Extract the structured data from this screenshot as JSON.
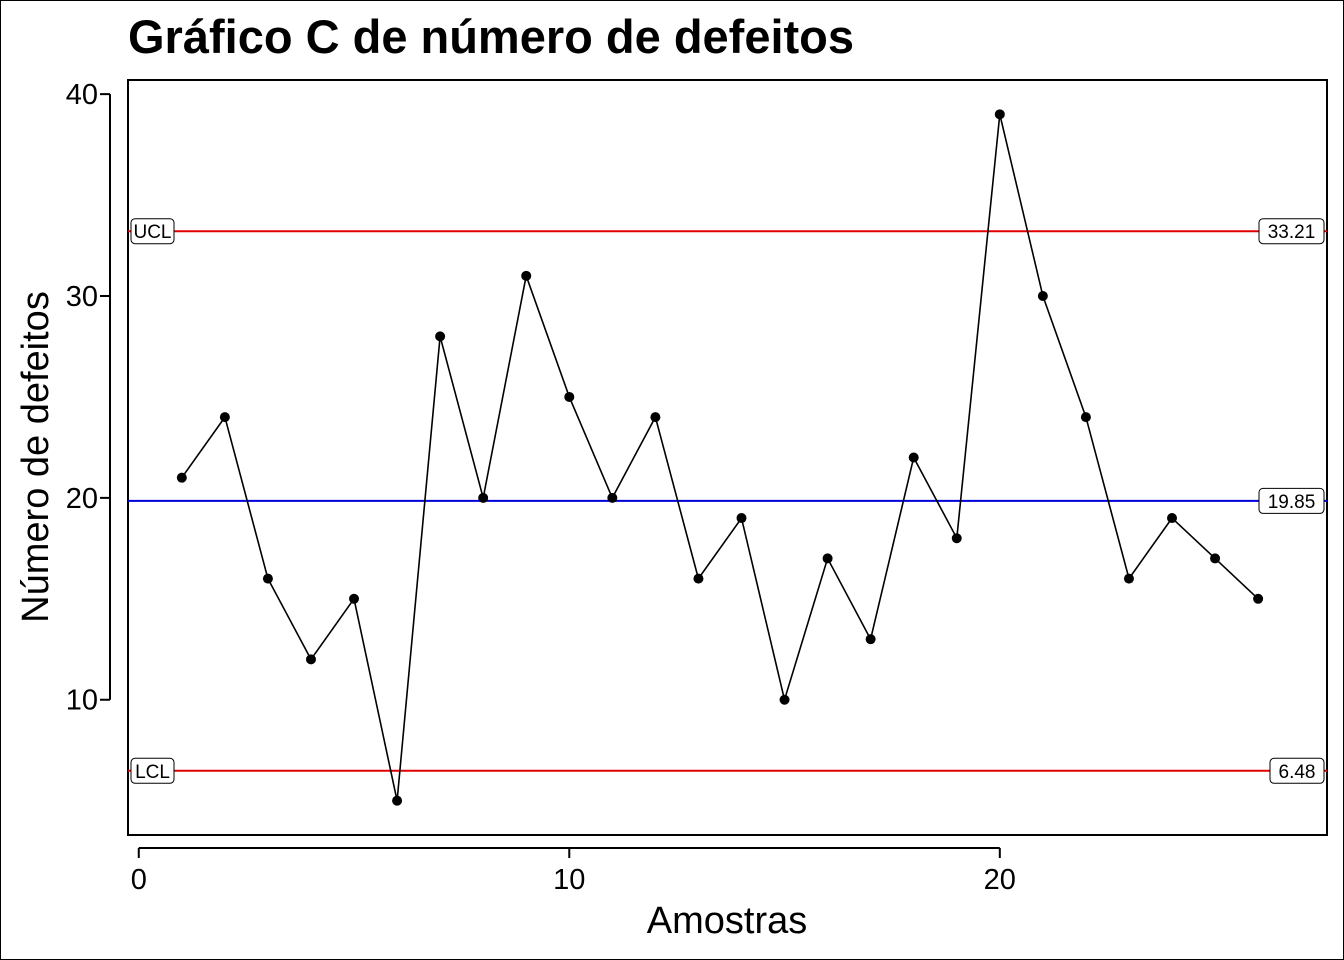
{
  "chart_data": {
    "type": "line",
    "title": "Gráfico C de número de defeitos",
    "xlabel": "Amostras",
    "ylabel": "Número de defeitos",
    "xlim": [
      -0.25,
      27.6
    ],
    "ylim": [
      3.3,
      40.7
    ],
    "x_ticks": [
      0,
      10,
      20
    ],
    "y_ticks": [
      10,
      20,
      30,
      40
    ],
    "grid": false,
    "legend": "none",
    "series": [
      {
        "x": [
          1,
          2,
          3,
          4,
          5,
          6,
          7,
          8,
          9,
          10,
          11,
          12,
          13,
          14,
          15,
          16,
          17,
          18,
          19,
          20,
          21,
          22,
          23,
          24,
          25,
          26
        ],
        "values": [
          21,
          24,
          16,
          12,
          15,
          5,
          28,
          20,
          31,
          25,
          20,
          24,
          16,
          19,
          10,
          17,
          13,
          22,
          18,
          39,
          30,
          24,
          16,
          19,
          17,
          15
        ],
        "color": "#000000"
      }
    ],
    "control_lines": [
      {
        "label": "UCL",
        "value": 33.21,
        "value_label": "33.21",
        "color": "#e00000"
      },
      {
        "label": "",
        "value": 19.85,
        "value_label": "19.85",
        "color": "#0000dd"
      },
      {
        "label": "LCL",
        "value": 6.48,
        "value_label": "6.48",
        "color": "#e00000"
      }
    ]
  }
}
